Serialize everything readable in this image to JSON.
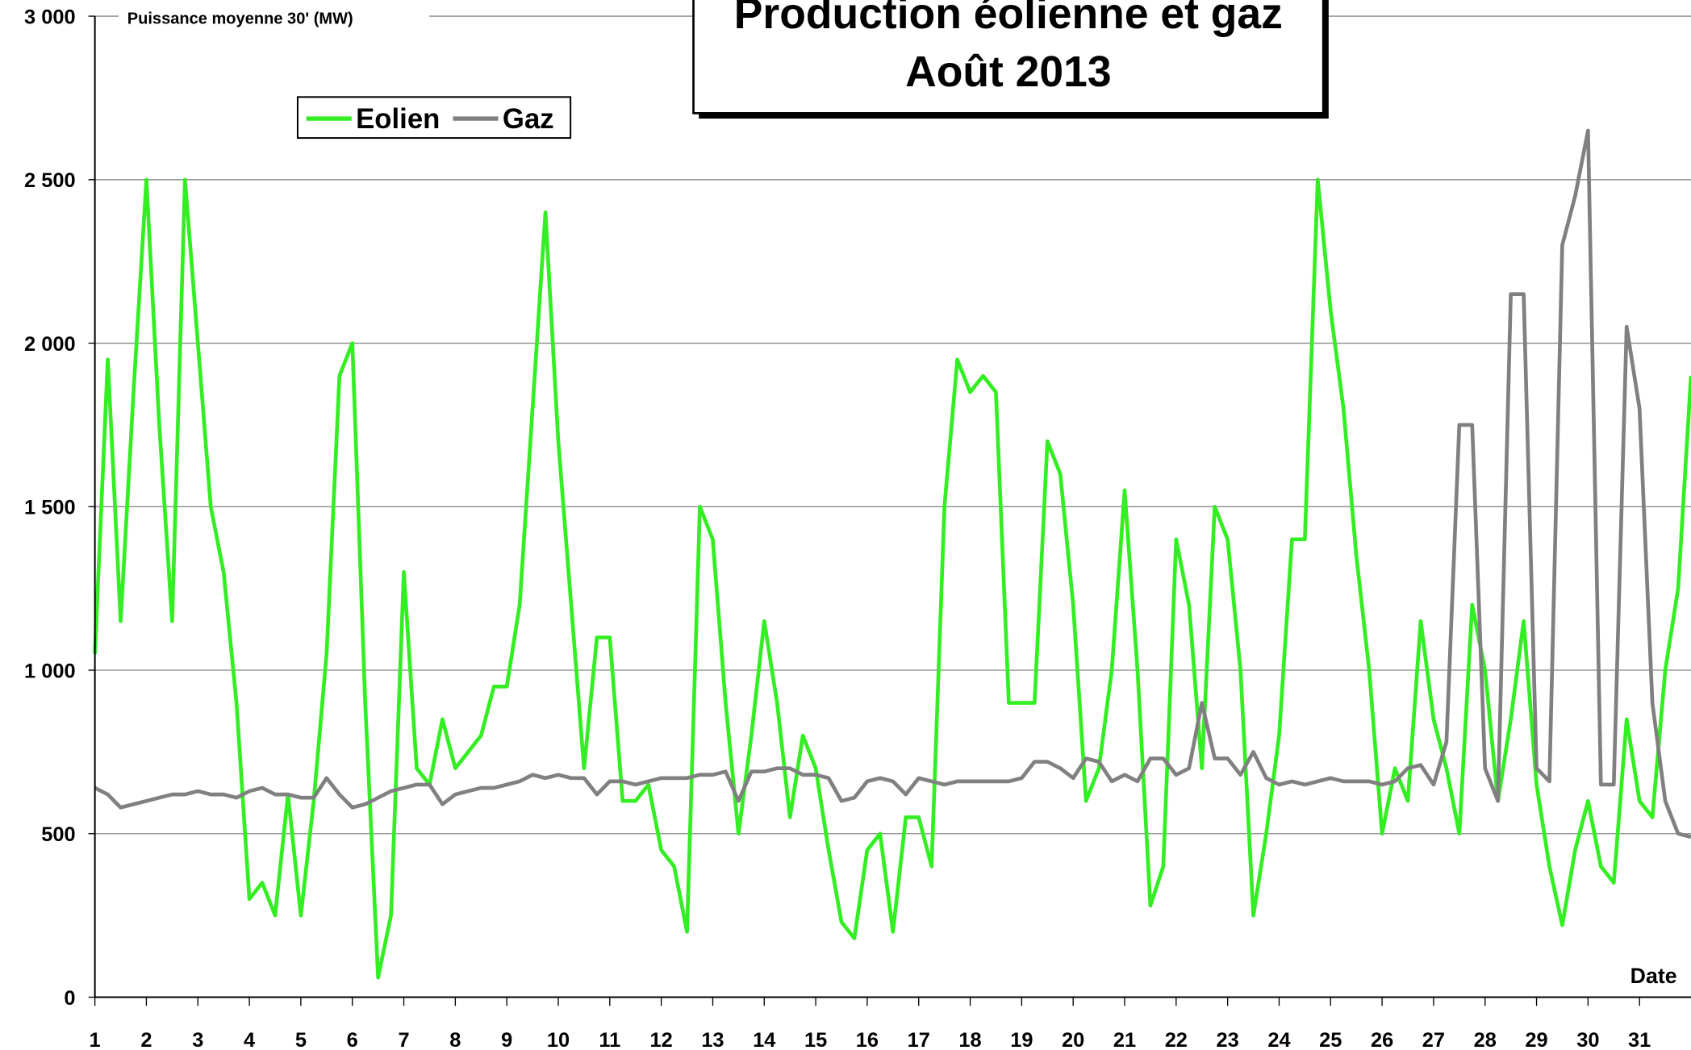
{
  "chart_data": {
    "type": "line",
    "title": "Production éolienne et gaz",
    "subtitle": "Août  2013",
    "y_label": "Puissance moyenne 30' (MW)",
    "x_label": "Date",
    "x": [
      1,
      1.25,
      1.5,
      1.75,
      2,
      2.25,
      2.5,
      2.75,
      3,
      3.25,
      3.5,
      3.75,
      4,
      4.25,
      4.5,
      4.75,
      5,
      5.25,
      5.5,
      5.75,
      6,
      6.25,
      6.5,
      6.75,
      7,
      7.25,
      7.5,
      7.75,
      8,
      8.25,
      8.5,
      8.75,
      9,
      9.25,
      9.5,
      9.75,
      10,
      10.25,
      10.5,
      10.75,
      11,
      11.25,
      11.5,
      11.75,
      12,
      12.25,
      12.5,
      12.75,
      13,
      13.25,
      13.5,
      13.75,
      14,
      14.25,
      14.5,
      14.75,
      15,
      15.25,
      15.5,
      15.75,
      16,
      16.25,
      16.5,
      16.75,
      17,
      17.25,
      17.5,
      17.75,
      18,
      18.25,
      18.5,
      18.75,
      19,
      19.25,
      19.5,
      19.75,
      20,
      20.25,
      20.5,
      20.75,
      21,
      21.25,
      21.5,
      21.75,
      22,
      22.25,
      22.5,
      22.75,
      23,
      23.25,
      23.5,
      23.75,
      24,
      24.25,
      24.5,
      24.75,
      25,
      25.25,
      25.5,
      25.75,
      26,
      26.25,
      26.5,
      26.75,
      27,
      27.25,
      27.5,
      27.75,
      28,
      28.25,
      28.5,
      28.75,
      29,
      29.25,
      29.5,
      29.75,
      30,
      30.25,
      30.5,
      30.75,
      31,
      31.25,
      31.5,
      31.75,
      32
    ],
    "series": [
      {
        "name": "Eolien",
        "color": "#33ee22",
        "values": [
          1050,
          1950,
          1150,
          1850,
          2500,
          1750,
          1150,
          2500,
          2000,
          1500,
          1300,
          900,
          300,
          350,
          250,
          620,
          250,
          600,
          1050,
          1900,
          2000,
          900,
          60,
          250,
          1300,
          700,
          650,
          850,
          700,
          750,
          800,
          950,
          950,
          1200,
          1800,
          2400,
          1700,
          1200,
          700,
          1100,
          1100,
          600,
          600,
          650,
          450,
          400,
          200,
          1500,
          1400,
          900,
          500,
          800,
          1150,
          900,
          550,
          800,
          700,
          450,
          230,
          180,
          450,
          500,
          200,
          550,
          550,
          400,
          1500,
          1950,
          1850,
          1900,
          1850,
          900,
          900,
          900,
          1700,
          1600,
          1200,
          600,
          700,
          1000,
          1550,
          1000,
          280,
          400,
          1400,
          1200,
          700,
          1500,
          1400,
          1000,
          250,
          500,
          800,
          1400,
          1400,
          2500,
          2100,
          1800,
          1350,
          1000,
          500,
          700,
          600,
          1150,
          850,
          700,
          500,
          1200,
          1000,
          600,
          850,
          1150,
          650,
          400,
          220,
          450,
          600,
          400,
          350,
          850,
          600,
          550,
          1000,
          1250,
          1900
        ]
      },
      {
        "name": "Gaz",
        "color": "#808080",
        "values": [
          640,
          620,
          580,
          590,
          600,
          610,
          620,
          620,
          630,
          620,
          620,
          610,
          630,
          640,
          620,
          620,
          610,
          610,
          670,
          620,
          580,
          590,
          610,
          630,
          640,
          650,
          650,
          590,
          620,
          630,
          640,
          640,
          650,
          660,
          680,
          670,
          680,
          670,
          670,
          620,
          660,
          660,
          650,
          660,
          670,
          670,
          670,
          680,
          680,
          690,
          600,
          690,
          690,
          700,
          700,
          680,
          680,
          670,
          600,
          610,
          660,
          670,
          660,
          620,
          670,
          660,
          650,
          660,
          660,
          660,
          660,
          660,
          670,
          720,
          720,
          700,
          670,
          730,
          720,
          660,
          680,
          660,
          730,
          730,
          680,
          700,
          900,
          730,
          730,
          680,
          750,
          670,
          650,
          660,
          650,
          660,
          670,
          660,
          660,
          660,
          650,
          660,
          700,
          710,
          650,
          780,
          1750,
          1750,
          700,
          600,
          2150,
          2150,
          700,
          660,
          2300,
          2450,
          2650,
          650,
          650,
          2050,
          1800,
          900,
          600,
          500,
          490
        ]
      }
    ],
    "xlim": [
      1,
      32
    ],
    "xticks": [
      1,
      2,
      3,
      4,
      5,
      6,
      7,
      8,
      9,
      10,
      11,
      12,
      13,
      14,
      15,
      16,
      17,
      18,
      19,
      20,
      21,
      22,
      23,
      24,
      25,
      26,
      27,
      28,
      29,
      30,
      31
    ],
    "ylim": [
      0,
      3000
    ],
    "yticks": [
      0,
      {
        "value": 500,
        "label": "500"
      },
      {
        "value": 1000,
        "label": "1 000"
      },
      {
        "value": 1500,
        "label": "1 500"
      },
      {
        "value": 2000,
        "label": "2 000"
      },
      {
        "value": 2500,
        "label": "2 500"
      },
      {
        "value": 3000,
        "label": "3 000"
      }
    ],
    "grid": true
  }
}
